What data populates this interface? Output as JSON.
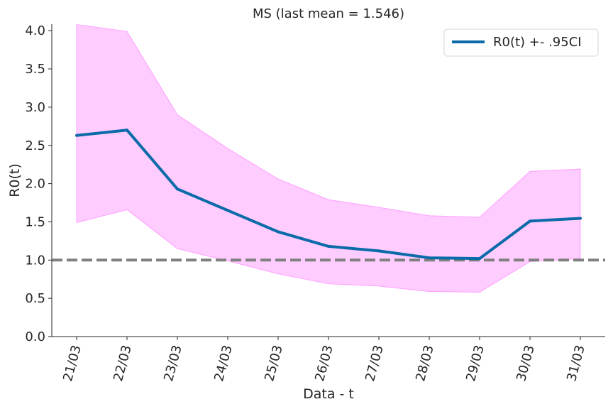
{
  "chart_data": {
    "type": "line",
    "title": "MS (last mean = 1.546)",
    "xlabel": "Data - t",
    "ylabel": "R0(t)",
    "categories": [
      "21/03",
      "22/03",
      "23/03",
      "24/03",
      "25/03",
      "26/03",
      "27/03",
      "28/03",
      "29/03",
      "30/03",
      "31/03"
    ],
    "ylim": [
      0,
      4.1
    ],
    "yticks": [
      "0.0",
      "0.5",
      "1.0",
      "1.5",
      "2.0",
      "2.5",
      "3.0",
      "3.5",
      "4.0"
    ],
    "series": [
      {
        "name": "R0(t) +- .95CI",
        "values": [
          2.63,
          2.7,
          1.93,
          1.65,
          1.37,
          1.18,
          1.12,
          1.03,
          1.02,
          1.51,
          1.546
        ],
        "lower": [
          1.49,
          1.66,
          1.15,
          0.99,
          0.82,
          0.69,
          0.66,
          0.59,
          0.58,
          0.98,
          1.02
        ],
        "upper": [
          4.08,
          3.99,
          2.9,
          2.46,
          2.06,
          1.79,
          1.69,
          1.58,
          1.56,
          2.16,
          2.19
        ]
      }
    ],
    "reference_line": {
      "y": 1.0,
      "style": "dashed"
    },
    "grid": false,
    "legend_position": "top-right",
    "colors": {
      "line": "#0b6aa8",
      "band": "#ffccff",
      "band_edge": "#ff9eff",
      "reference": "#808080"
    }
  }
}
